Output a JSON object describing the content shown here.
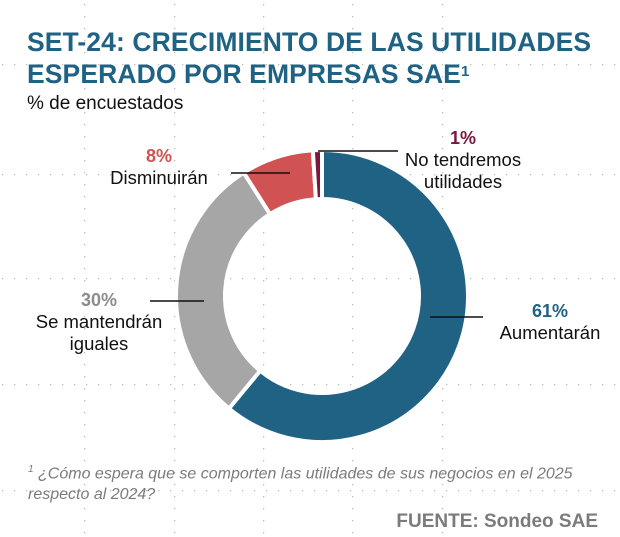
{
  "header": {
    "title_line1": "SET-24: CRECIMIENTO DE LAS UTILIDADES",
    "title_line2": "ESPERADO POR EMPRESAS SAE",
    "title_superscript": "1",
    "subtitle": "% de encuestados"
  },
  "chart_data": {
    "type": "pie",
    "variant": "donut",
    "title": "SET-24: CRECIMIENTO DE LAS UTILIDADES ESPERADO POR EMPRESAS SAE",
    "subtitle": "% de encuestados",
    "start_angle": "12 o'clock, clockwise",
    "slices": [
      {
        "label": "Aumentarán",
        "value": 61,
        "value_label": "61%",
        "color": "#1f6284"
      },
      {
        "label": "Se mantendrán iguales",
        "value": 30,
        "value_label": "30%",
        "color": "#a6a6a6"
      },
      {
        "label": "Disminuirán",
        "value": 8,
        "value_label": "8%",
        "color": "#d05252"
      },
      {
        "label": "No tendremos utilidades",
        "value": 1,
        "value_label": "1%",
        "color": "#7a1640"
      }
    ],
    "legend": "none (direct labels)"
  },
  "labels": {
    "aumentaran": {
      "pct": "61%",
      "text": "Aumentarán",
      "pct_color": "#1f6284"
    },
    "mantendran": {
      "pct": "30%",
      "text1": "Se mantendrán",
      "text2": "iguales",
      "pct_color": "#8c8c8c"
    },
    "disminuiran": {
      "pct": "8%",
      "text": "Disminuirán",
      "pct_color": "#d05252"
    },
    "no_utilidades": {
      "pct": "1%",
      "text1": "No tendremos",
      "text2": "utilidades",
      "pct_color": "#7a1640"
    }
  },
  "footnote": {
    "marker": "1",
    "text": "¿Cómo espera que se comporten las utilidades de sus negocios en el 2025 respecto al 2024?"
  },
  "source": "FUENTE: Sondeo SAE"
}
